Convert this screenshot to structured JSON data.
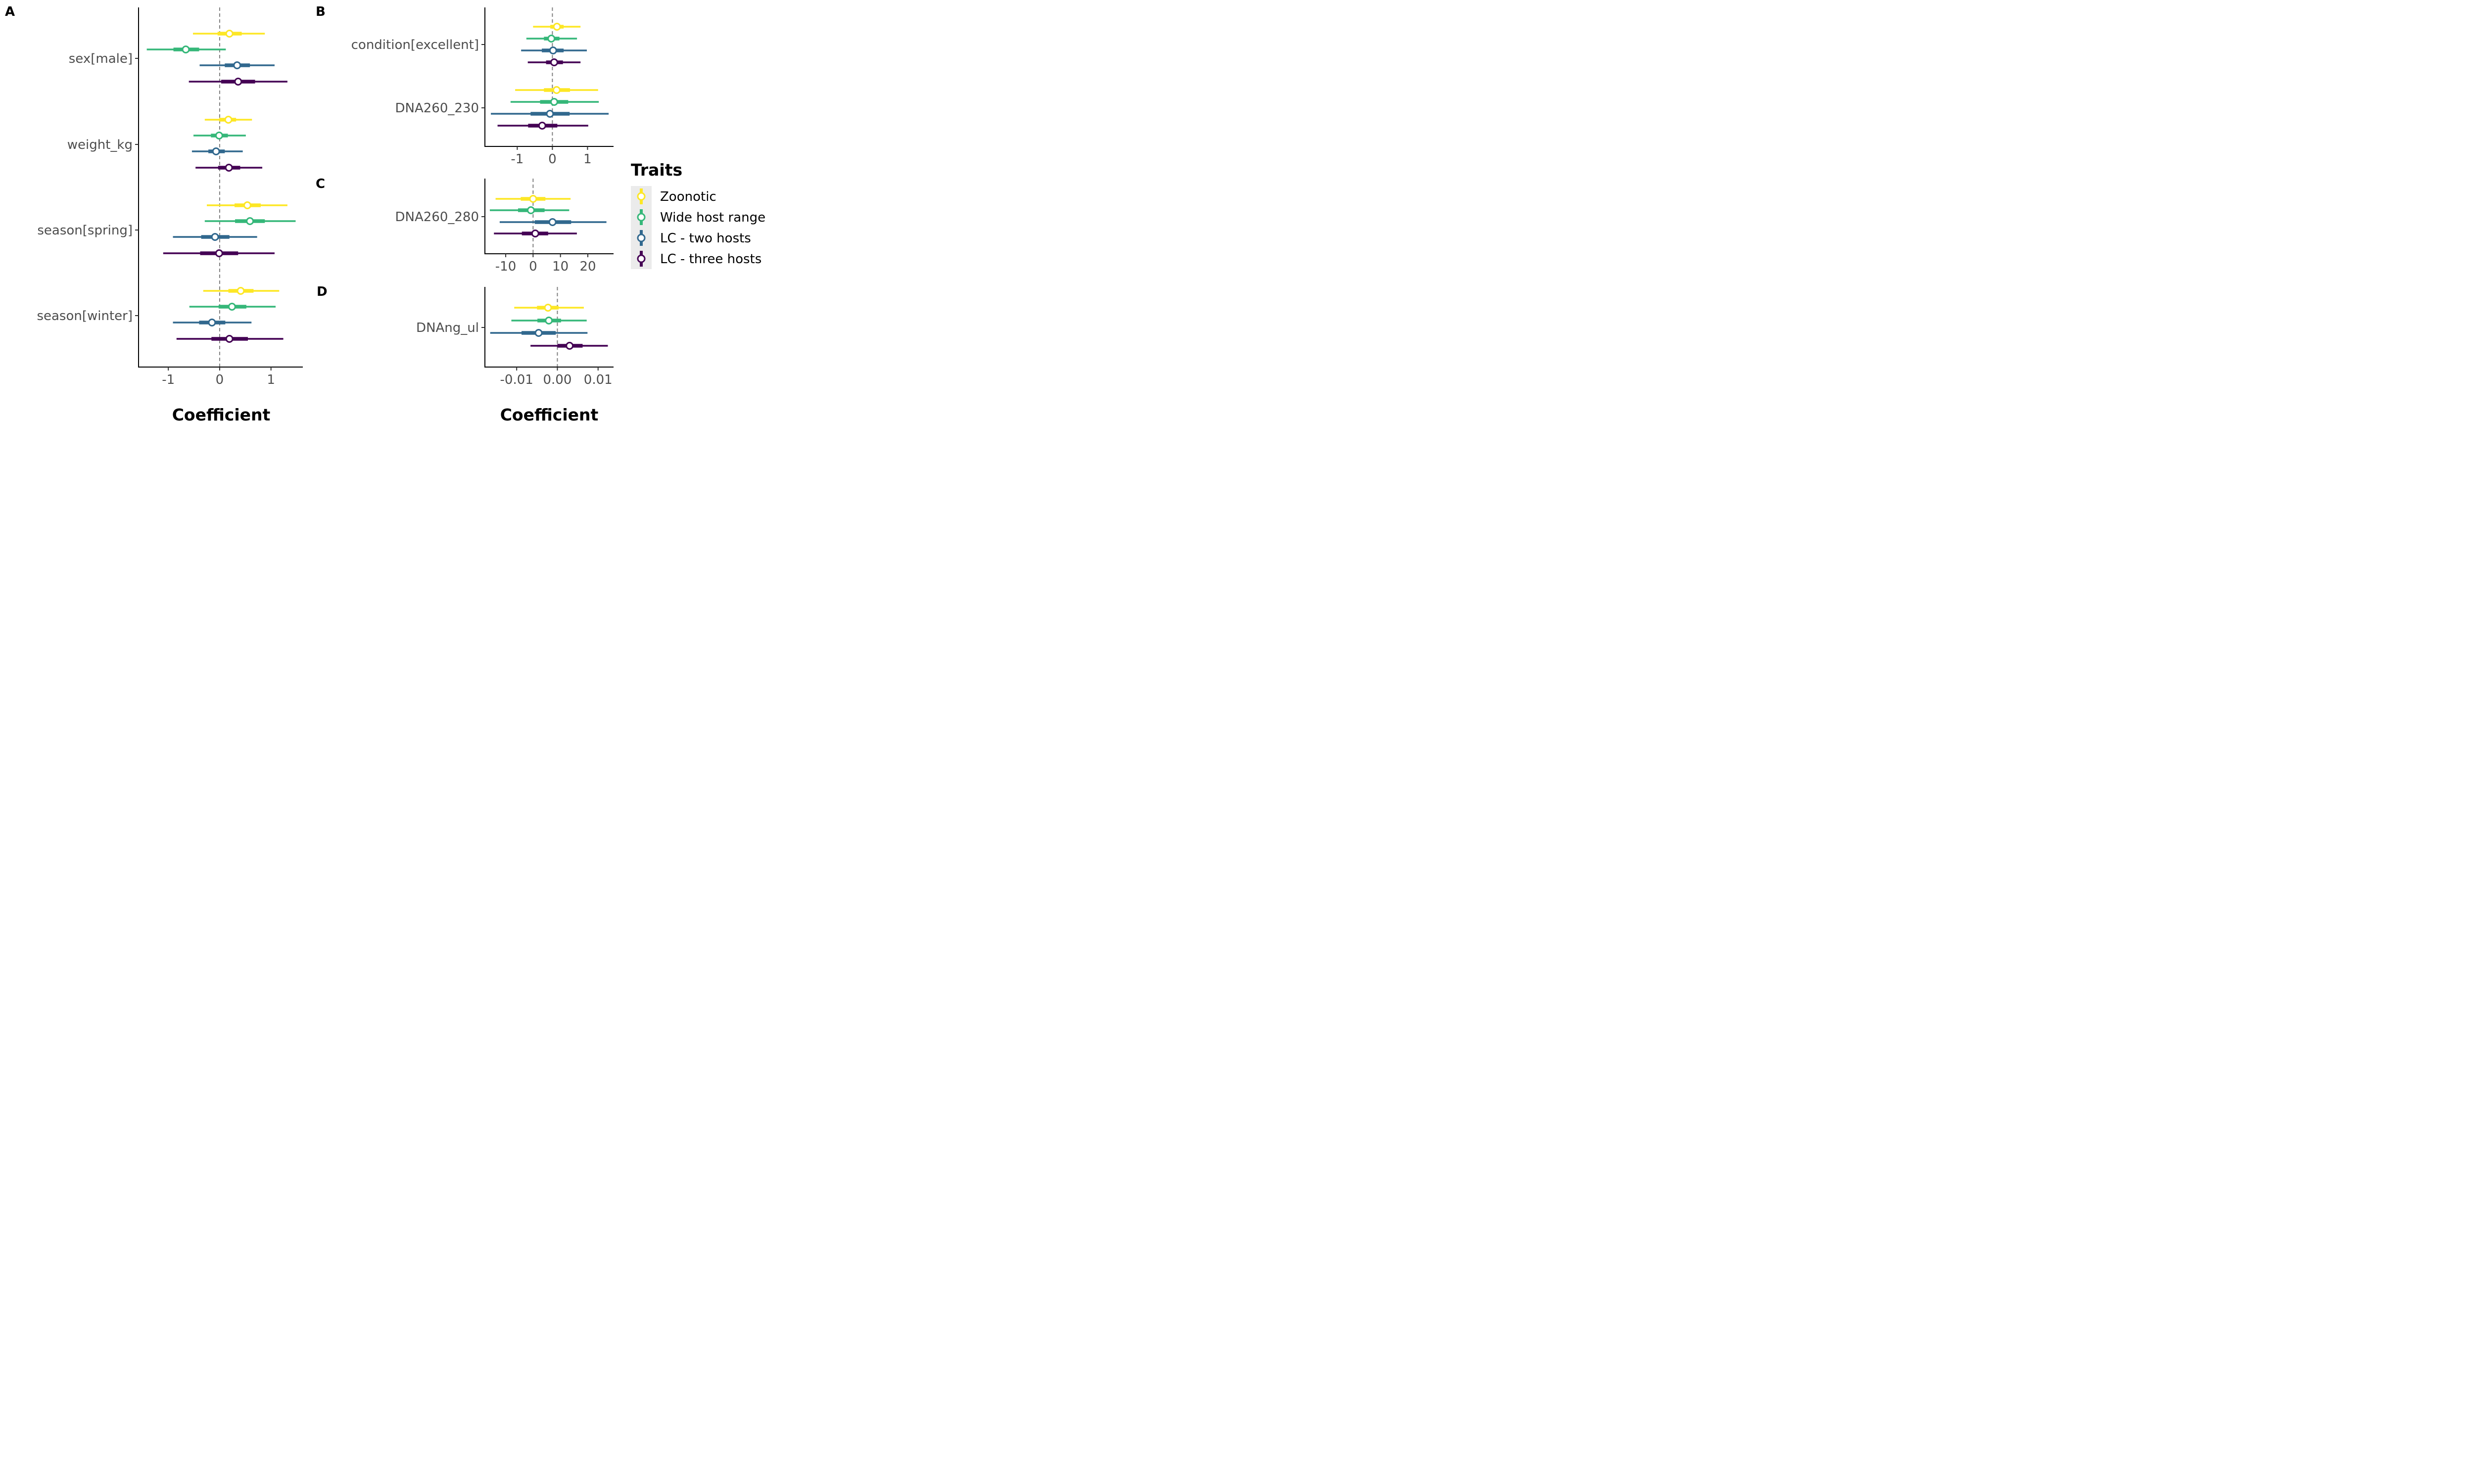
{
  "figure": {
    "legend": {
      "title": "Traits",
      "entries": [
        {
          "name": "Zoonotic",
          "color": "#FDE725"
        },
        {
          "name": "Wide host range",
          "color": "#35B779"
        },
        {
          "name": "LC - two hosts",
          "color": "#31688E"
        },
        {
          "name": "LC - three hosts",
          "color": "#440154"
        }
      ]
    },
    "xlabels": [
      "Coefficient",
      "Coefficient"
    ]
  },
  "chart_data": [
    {
      "panel": "A",
      "type": "pointrange",
      "xlabel": "Coefficient",
      "xlim": [
        -1.58,
        1.62
      ],
      "xticks": [
        -1,
        0,
        1
      ],
      "xticklabels": [
        "-1",
        "0",
        "1"
      ],
      "reference_line": 0,
      "categories": [
        "sex[male]",
        "weight_kg",
        "season[spring]",
        "season[winter]"
      ],
      "series": [
        {
          "name": "Zoonotic",
          "color": "#FDE725",
          "estimate": [
            0.19,
            0.17,
            0.54,
            0.41
          ],
          "inner": [
            [
              -0.04,
              0.43
            ],
            [
              -0.01,
              0.32
            ],
            [
              0.29,
              0.8
            ],
            [
              0.17,
              0.66
            ]
          ],
          "outer": [
            [
              -0.52,
              0.88
            ],
            [
              -0.29,
              0.63
            ],
            [
              -0.25,
              1.32
            ],
            [
              -0.32,
              1.16
            ]
          ]
        },
        {
          "name": "Wide host range",
          "color": "#35B779",
          "estimate": [
            -0.66,
            -0.01,
            0.59,
            0.24
          ],
          "inner": [
            [
              -0.9,
              -0.4
            ],
            [
              -0.17,
              0.16
            ],
            [
              0.3,
              0.88
            ],
            [
              -0.02,
              0.52
            ]
          ],
          "outer": [
            [
              -1.42,
              0.12
            ],
            [
              -0.51,
              0.51
            ],
            [
              -0.29,
              1.48
            ],
            [
              -0.59,
              1.09
            ]
          ]
        },
        {
          "name": "LC - two hosts",
          "color": "#31688E",
          "estimate": [
            0.34,
            -0.07,
            -0.09,
            -0.15
          ],
          "inner": [
            [
              0.1,
              0.59
            ],
            [
              -0.22,
              0.1
            ],
            [
              -0.36,
              0.19
            ],
            [
              -0.4,
              0.11
            ]
          ],
          "outer": [
            [
              -0.39,
              1.07
            ],
            [
              -0.54,
              0.45
            ],
            [
              -0.91,
              0.73
            ],
            [
              -0.91,
              0.62
            ]
          ]
        },
        {
          "name": "LC - three hosts",
          "color": "#440154",
          "estimate": [
            0.36,
            0.18,
            -0.01,
            0.19
          ],
          "inner": [
            [
              0.03,
              0.69
            ],
            [
              -0.03,
              0.4
            ],
            [
              -0.38,
              0.36
            ],
            [
              -0.16,
              0.55
            ]
          ],
          "outer": [
            [
              -0.6,
              1.32
            ],
            [
              -0.47,
              0.83
            ],
            [
              -1.1,
              1.07
            ],
            [
              -0.84,
              1.24
            ]
          ]
        }
      ]
    },
    {
      "panel": "B",
      "type": "pointrange",
      "xlabel": "",
      "xlim": [
        -1.92,
        1.74
      ],
      "xticks": [
        -1,
        0,
        1
      ],
      "xticklabels": [
        "-1",
        "0",
        "1"
      ],
      "reference_line": 0,
      "categories": [
        "condition[excellent]",
        "DNA260_230"
      ],
      "series": [
        {
          "name": "Zoonotic",
          "color": "#FDE725",
          "estimate": [
            0.13,
            0.12
          ],
          "inner": [
            [
              -0.06,
              0.32
            ],
            [
              -0.24,
              0.5
            ]
          ],
          "outer": [
            [
              -0.55,
              0.8
            ],
            [
              -1.06,
              1.3
            ]
          ]
        },
        {
          "name": "Wide host range",
          "color": "#35B779",
          "estimate": [
            -0.03,
            0.05
          ],
          "inner": [
            [
              -0.24,
              0.2
            ],
            [
              -0.35,
              0.45
            ]
          ],
          "outer": [
            [
              -0.74,
              0.7
            ],
            [
              -1.19,
              1.32
            ]
          ]
        },
        {
          "name": "LC - two hosts",
          "color": "#31688E",
          "estimate": [
            0.02,
            -0.07
          ],
          "inner": [
            [
              -0.3,
              0.32
            ],
            [
              -0.62,
              0.49
            ]
          ],
          "outer": [
            [
              -0.89,
              0.98
            ],
            [
              -1.75,
              1.6
            ]
          ]
        },
        {
          "name": "LC - three hosts",
          "color": "#440154",
          "estimate": [
            0.05,
            -0.29
          ],
          "inner": [
            [
              -0.18,
              0.3
            ],
            [
              -0.69,
              0.14
            ]
          ],
          "outer": [
            [
              -0.7,
              0.8
            ],
            [
              -1.56,
              1.02
            ]
          ]
        }
      ]
    },
    {
      "panel": "C",
      "type": "pointrange",
      "xlabel": "",
      "xlim": [
        -17.6,
        29.4
      ],
      "xticks": [
        -10,
        0,
        10,
        20
      ],
      "xticklabels": [
        "-10",
        "0",
        "10",
        "20"
      ],
      "reference_line": 0,
      "categories": [
        "DNA260_280"
      ],
      "series": [
        {
          "name": "Zoonotic",
          "color": "#FDE725",
          "estimate": [
            0.0
          ],
          "inner": [
            [
              -4.5,
              4.5
            ]
          ],
          "outer": [
            [
              -13.7,
              13.7
            ]
          ]
        },
        {
          "name": "Wide host range",
          "color": "#35B779",
          "estimate": [
            -0.8
          ],
          "inner": [
            [
              -5.5,
              4.2
            ]
          ],
          "outer": [
            [
              -15.8,
              13.2
            ]
          ]
        },
        {
          "name": "LC - two hosts",
          "color": "#31688E",
          "estimate": [
            7.1
          ],
          "inner": [
            [
              0.6,
              13.9
            ]
          ],
          "outer": [
            [
              -12.2,
              26.8
            ]
          ]
        },
        {
          "name": "LC - three hosts",
          "color": "#440154",
          "estimate": [
            0.8
          ],
          "inner": [
            [
              -4.1,
              5.5
            ]
          ],
          "outer": [
            [
              -14.3,
              16.0
            ]
          ]
        }
      ]
    },
    {
      "panel": "D",
      "type": "pointrange",
      "xlabel": "Coefficient",
      "xlim": [
        -0.0178,
        0.0138
      ],
      "xticks": [
        -0.01,
        0.0,
        0.01
      ],
      "xticklabels": [
        "-0.01",
        "0.00",
        "0.01"
      ],
      "reference_line": 0,
      "categories": [
        "DNAng_ul"
      ],
      "series": [
        {
          "name": "Zoonotic",
          "color": "#FDE725",
          "estimate": [
            -0.0023
          ],
          "inner": [
            [
              -0.005,
              0.0003
            ]
          ],
          "outer": [
            [
              -0.0106,
              0.0065
            ]
          ]
        },
        {
          "name": "Wide host range",
          "color": "#35B779",
          "estimate": [
            -0.0021
          ],
          "inner": [
            [
              -0.0049,
              0.0009
            ]
          ],
          "outer": [
            [
              -0.0113,
              0.0072
            ]
          ]
        },
        {
          "name": "LC - two hosts",
          "color": "#31688E",
          "estimate": [
            -0.0046
          ],
          "inner": [
            [
              -0.0088,
              -0.0004
            ]
          ],
          "outer": [
            [
              -0.0165,
              0.0074
            ]
          ]
        },
        {
          "name": "LC - three hosts",
          "color": "#440154",
          "estimate": [
            0.003
          ],
          "inner": [
            [
              0.0,
              0.0062
            ]
          ],
          "outer": [
            [
              -0.0066,
              0.0124
            ]
          ]
        }
      ]
    }
  ]
}
